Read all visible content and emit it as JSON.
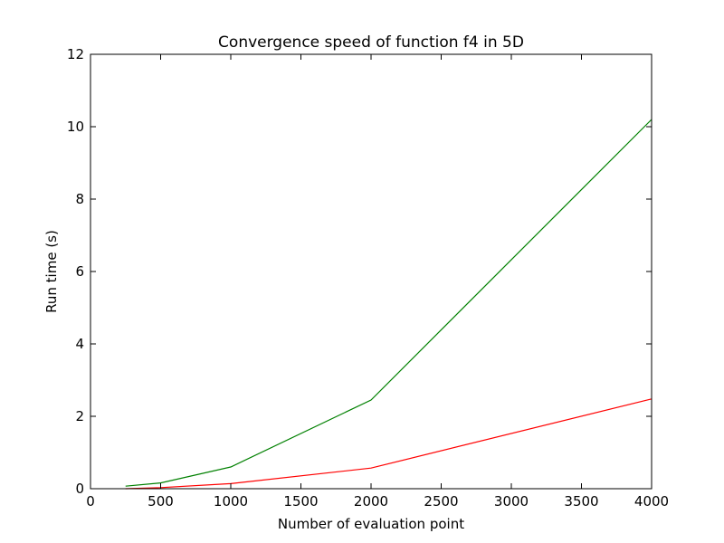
{
  "chart_data": {
    "type": "line",
    "title": "Convergence speed of function f4 in 5D",
    "xlabel": "Number of evaluation point",
    "ylabel": "Run time (s)",
    "xlim": [
      0,
      4000
    ],
    "ylim": [
      0,
      12
    ],
    "xticks": [
      "0",
      "500",
      "1000",
      "1500",
      "2000",
      "2500",
      "3000",
      "3500",
      "4000"
    ],
    "yticks": [
      "0",
      "2",
      "4",
      "6",
      "8",
      "10",
      "12"
    ],
    "grid": false,
    "legend": "none",
    "x": [
      250,
      500,
      1000,
      2000,
      4000
    ],
    "series": [
      {
        "color": "#008000",
        "values": [
          0.07,
          0.16,
          0.6,
          2.45,
          10.2
        ]
      },
      {
        "color": "#ff0000",
        "values": [
          0.0,
          0.03,
          0.14,
          0.57,
          2.48
        ]
      }
    ]
  }
}
